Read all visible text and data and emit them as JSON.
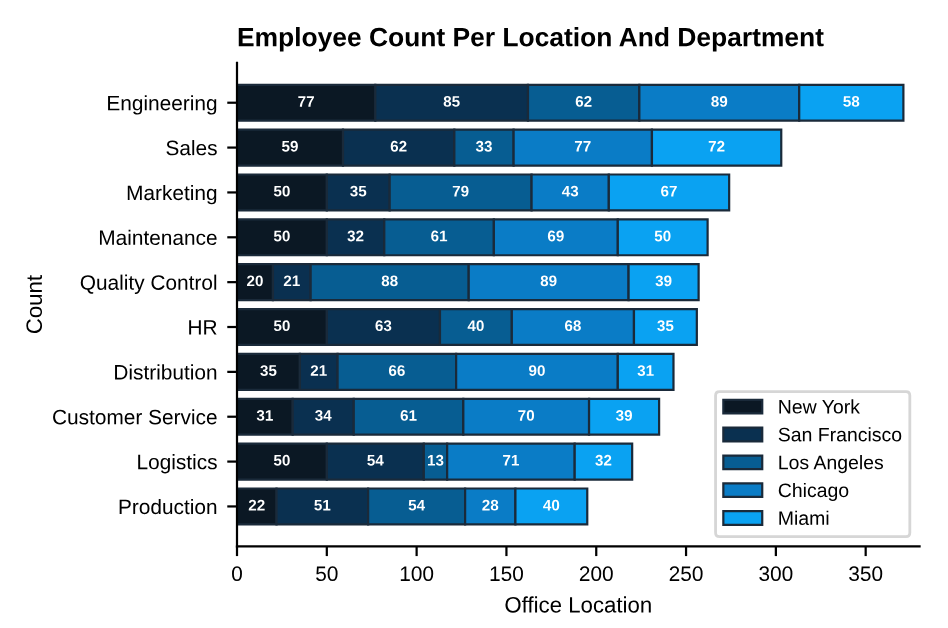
{
  "chart_data": {
    "type": "bar",
    "orientation": "horizontal",
    "stacked": true,
    "title": "Employee Count Per Location And Department",
    "xlabel": "Office Location",
    "ylabel": "Count",
    "categories": [
      "Engineering",
      "Sales",
      "Marketing",
      "Maintenance",
      "Quality Control",
      "HR",
      "Distribution",
      "Customer Service",
      "Logistics",
      "Production"
    ],
    "series": [
      {
        "name": "New York",
        "color": "#0b1824",
        "values": [
          77,
          59,
          50,
          50,
          20,
          50,
          35,
          31,
          50,
          22
        ]
      },
      {
        "name": "San Francisco",
        "color": "#0a3050",
        "values": [
          85,
          62,
          35,
          32,
          21,
          63,
          21,
          34,
          54,
          51
        ]
      },
      {
        "name": "Los Angeles",
        "color": "#075d92",
        "values": [
          62,
          33,
          79,
          61,
          88,
          40,
          66,
          61,
          13,
          54
        ]
      },
      {
        "name": "Chicago",
        "color": "#0a7cc6",
        "values": [
          89,
          77,
          43,
          69,
          89,
          68,
          90,
          70,
          71,
          28
        ]
      },
      {
        "name": "Miami",
        "color": "#0aa2f2",
        "values": [
          58,
          72,
          67,
          50,
          39,
          35,
          31,
          39,
          32,
          40
        ]
      }
    ],
    "xlim": [
      0,
      380
    ],
    "xticks": [
      0,
      50,
      100,
      150,
      200,
      250,
      300,
      350
    ],
    "data_labels": true,
    "legend": "bottom right",
    "grid": false
  }
}
